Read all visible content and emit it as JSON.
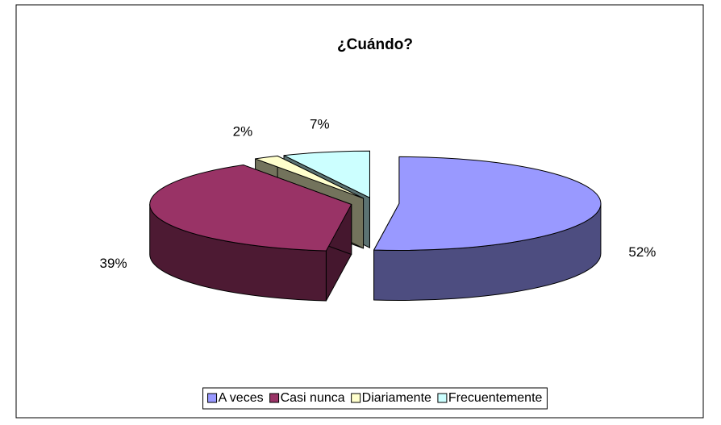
{
  "chart_data": {
    "type": "pie3d",
    "title": "¿Cuándo?",
    "categories": [
      "A veces",
      "Casi nunca",
      "Diariamente",
      "Frecuentemente"
    ],
    "values": [
      52,
      39,
      2,
      7
    ],
    "value_labels": [
      "52%",
      "39%",
      "2%",
      "7%"
    ],
    "colors": [
      "#9999ff",
      "#993366",
      "#ffffcc",
      "#ccffff"
    ],
    "legend": "bottom"
  }
}
